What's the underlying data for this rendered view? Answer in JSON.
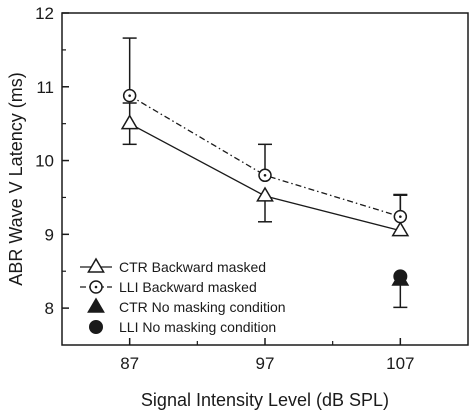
{
  "chart_data": {
    "type": "line",
    "title": "",
    "xlabel": "Signal Intensity Level (dB SPL)",
    "ylabel": "ABR Wave V Latency (ms)",
    "xlim": [
      82,
      112
    ],
    "ylim": [
      7.5,
      12
    ],
    "xticks": [
      87,
      97,
      107
    ],
    "yticks": [
      8,
      9,
      10,
      11,
      12
    ],
    "grid": false,
    "legend_position": "bottom-left",
    "series": [
      {
        "name": "CTR Backward masked",
        "legend_label": "CTR Backward masked",
        "marker": "open-triangle",
        "line": "solid",
        "x": [
          87,
          97,
          107
        ],
        "y": [
          10.5,
          9.52,
          9.05
        ],
        "err": [
          0.28,
          0.35,
          0.48
        ],
        "err_side": [
          "both",
          "down",
          "up"
        ]
      },
      {
        "name": "LLI Backward masked",
        "legend_label": "LLI Backward masked",
        "marker": "open-circle-dot",
        "line": "dash-dot",
        "x": [
          87,
          97,
          107
        ],
        "y": [
          10.88,
          9.8,
          9.24
        ],
        "err": [
          0.78,
          0.42,
          0.3
        ],
        "err_side": [
          "up",
          "up",
          "up"
        ]
      },
      {
        "name": "CTR No masking condition",
        "legend_label": "CTR No masking condition",
        "marker": "filled-triangle",
        "line": "none",
        "x": [
          107
        ],
        "y": [
          8.38
        ],
        "err": [
          0.37
        ],
        "err_side": [
          "down"
        ]
      },
      {
        "name": "LLI No masking condition",
        "legend_label": "LLI No masking condition",
        "marker": "filled-circle",
        "line": "none",
        "x": [
          107
        ],
        "y": [
          8.43
        ],
        "err": [
          0.0
        ],
        "err_side": [
          "none"
        ]
      }
    ]
  }
}
